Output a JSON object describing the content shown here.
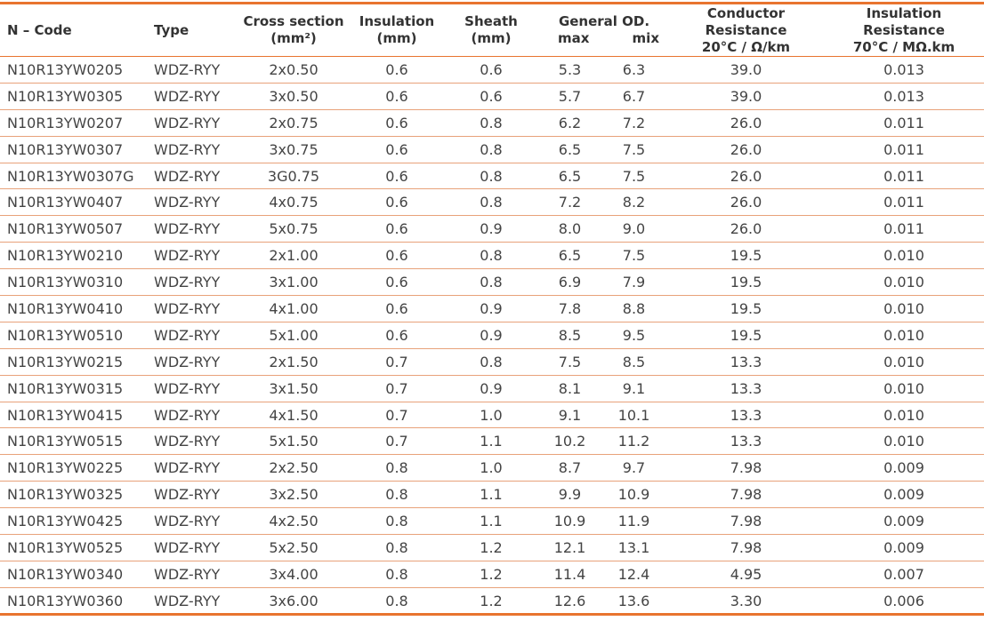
{
  "headers": {
    "code": "N – Code",
    "type": "Type",
    "cross_section": "Cross section",
    "cross_section_unit": "(mm²)",
    "insulation": "Insulation",
    "insulation_unit": "(mm)",
    "sheath": "Sheath",
    "sheath_unit": "(mm)",
    "general_od": "General OD.",
    "od_max": "max",
    "od_min": "mix",
    "conductor_resistance": "Conductor Resistance",
    "conductor_resistance_unit": "20°C / Ω/km",
    "insulation_resistance": "Insulation Resistance",
    "insulation_resistance_unit": "70°C / MΩ.km"
  },
  "rows": [
    [
      "N10R13YW0205",
      "WDZ-RYY",
      "2x0.50",
      "0.6",
      "0.6",
      "5.3",
      "6.3",
      "39.0",
      "0.013"
    ],
    [
      "N10R13YW0305",
      "WDZ-RYY",
      "3x0.50",
      "0.6",
      "0.6",
      "5.7",
      "6.7",
      "39.0",
      "0.013"
    ],
    [
      "N10R13YW0207",
      "WDZ-RYY",
      "2x0.75",
      "0.6",
      "0.8",
      "6.2",
      "7.2",
      "26.0",
      "0.011"
    ],
    [
      "N10R13YW0307",
      "WDZ-RYY",
      "3x0.75",
      "0.6",
      "0.8",
      "6.5",
      "7.5",
      "26.0",
      "0.011"
    ],
    [
      "N10R13YW0307G",
      "WDZ-RYY",
      "3G0.75",
      "0.6",
      "0.8",
      "6.5",
      "7.5",
      "26.0",
      "0.011"
    ],
    [
      "N10R13YW0407",
      "WDZ-RYY",
      "4x0.75",
      "0.6",
      "0.8",
      "7.2",
      "8.2",
      "26.0",
      "0.011"
    ],
    [
      "N10R13YW0507",
      "WDZ-RYY",
      "5x0.75",
      "0.6",
      "0.9",
      "8.0",
      "9.0",
      "26.0",
      "0.011"
    ],
    [
      "N10R13YW0210",
      "WDZ-RYY",
      "2x1.00",
      "0.6",
      "0.8",
      "6.5",
      "7.5",
      "19.5",
      "0.010"
    ],
    [
      "N10R13YW0310",
      "WDZ-RYY",
      "3x1.00",
      "0.6",
      "0.8",
      "6.9",
      "7.9",
      "19.5",
      "0.010"
    ],
    [
      "N10R13YW0410",
      "WDZ-RYY",
      "4x1.00",
      "0.6",
      "0.9",
      "7.8",
      "8.8",
      "19.5",
      "0.010"
    ],
    [
      "N10R13YW0510",
      "WDZ-RYY",
      "5x1.00",
      "0.6",
      "0.9",
      "8.5",
      "9.5",
      "19.5",
      "0.010"
    ],
    [
      "N10R13YW0215",
      "WDZ-RYY",
      "2x1.50",
      "0.7",
      "0.8",
      "7.5",
      "8.5",
      "13.3",
      "0.010"
    ],
    [
      "N10R13YW0315",
      "WDZ-RYY",
      "3x1.50",
      "0.7",
      "0.9",
      "8.1",
      "9.1",
      "13.3",
      "0.010"
    ],
    [
      "N10R13YW0415",
      "WDZ-RYY",
      "4x1.50",
      "0.7",
      "1.0",
      "9.1",
      "10.1",
      "13.3",
      "0.010"
    ],
    [
      "N10R13YW0515",
      "WDZ-RYY",
      "5x1.50",
      "0.7",
      "1.1",
      "10.2",
      "11.2",
      "13.3",
      "0.010"
    ],
    [
      "N10R13YW0225",
      "WDZ-RYY",
      "2x2.50",
      "0.8",
      "1.0",
      "8.7",
      "9.7",
      "7.98",
      "0.009"
    ],
    [
      "N10R13YW0325",
      "WDZ-RYY",
      "3x2.50",
      "0.8",
      "1.1",
      "9.9",
      "10.9",
      "7.98",
      "0.009"
    ],
    [
      "N10R13YW0425",
      "WDZ-RYY",
      "4x2.50",
      "0.8",
      "1.1",
      "10.9",
      "11.9",
      "7.98",
      "0.009"
    ],
    [
      "N10R13YW0525",
      "WDZ-RYY",
      "5x2.50",
      "0.8",
      "1.2",
      "12.1",
      "13.1",
      "7.98",
      "0.009"
    ],
    [
      "N10R13YW0340",
      "WDZ-RYY",
      "3x4.00",
      "0.8",
      "1.2",
      "11.4",
      "12.4",
      "4.95",
      "0.007"
    ],
    [
      "N10R13YW0360",
      "WDZ-RYY",
      "3x6.00",
      "0.8",
      "1.2",
      "12.6",
      "13.6",
      "3.30",
      "0.006"
    ]
  ],
  "colors": {
    "accent": "#e8742f",
    "row_rule": "#e8a27a",
    "text": "#3a3a3a"
  }
}
